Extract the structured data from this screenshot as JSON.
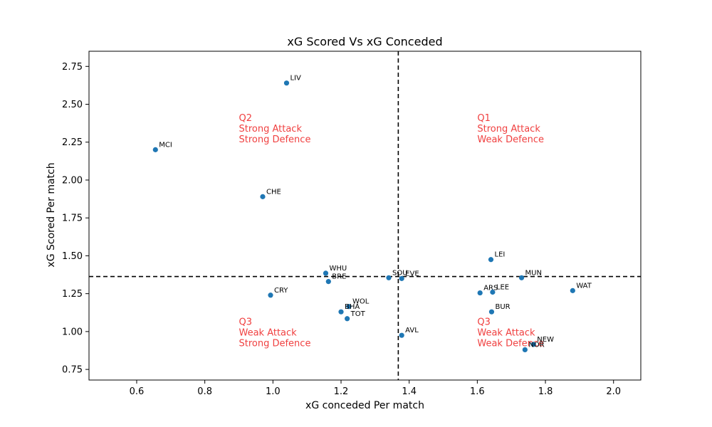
{
  "chart_data": {
    "type": "scatter",
    "title": "xG Scored Vs xG Conceded",
    "xlabel": "xG conceded Per match",
    "ylabel": "xG Scored Per match",
    "xlim": [
      0.46,
      2.08
    ],
    "ylim": [
      0.68,
      2.85
    ],
    "xticks": [
      0.6,
      0.8,
      1.0,
      1.2,
      1.4,
      1.6,
      1.8,
      2.0
    ],
    "xtick_labels": [
      "0.6",
      "0.8",
      "1.0",
      "1.2",
      "1.4",
      "1.6",
      "1.8",
      "2.0"
    ],
    "yticks": [
      0.75,
      1.0,
      1.25,
      1.5,
      1.75,
      2.0,
      2.25,
      2.5,
      2.75
    ],
    "ytick_labels": [
      "0.75",
      "1.00",
      "1.25",
      "1.50",
      "1.75",
      "2.00",
      "2.25",
      "2.50",
      "2.75"
    ],
    "grid": false,
    "point_color": "#1f77b4",
    "quadrant_label_color": "#f04040",
    "reference_lines": {
      "x": 1.368,
      "y": 1.363,
      "style": "dashed",
      "color": "#000000"
    },
    "points": [
      {
        "label": "LIV",
        "x": 1.04,
        "y": 2.64
      },
      {
        "label": "MCI",
        "x": 0.655,
        "y": 2.2
      },
      {
        "label": "CHE",
        "x": 0.97,
        "y": 1.89
      },
      {
        "label": "LEI",
        "x": 1.64,
        "y": 1.475
      },
      {
        "label": "WHU",
        "x": 1.155,
        "y": 1.385
      },
      {
        "label": "BRE",
        "x": 1.163,
        "y": 1.33
      },
      {
        "label": "SOU",
        "x": 1.34,
        "y": 1.355
      },
      {
        "label": "EVE",
        "x": 1.378,
        "y": 1.35
      },
      {
        "label": "MUN",
        "x": 1.73,
        "y": 1.355
      },
      {
        "label": "WAT",
        "x": 1.88,
        "y": 1.27
      },
      {
        "label": "ARS",
        "x": 1.608,
        "y": 1.255
      },
      {
        "label": "LEE",
        "x": 1.645,
        "y": 1.26
      },
      {
        "label": "CRY",
        "x": 0.993,
        "y": 1.24
      },
      {
        "label": "WOL",
        "x": 1.223,
        "y": 1.165
      },
      {
        "label": "BHA",
        "x": 1.2,
        "y": 1.13
      },
      {
        "label": "BUR",
        "x": 1.642,
        "y": 1.13
      },
      {
        "label": "TOT",
        "x": 1.218,
        "y": 1.085
      },
      {
        "label": "AVL",
        "x": 1.378,
        "y": 0.975
      },
      {
        "label": "NEW",
        "x": 1.765,
        "y": 0.915
      },
      {
        "label": "NOR",
        "x": 1.74,
        "y": 0.88
      }
    ],
    "annotations": [
      {
        "lines": [
          "Q2",
          "Strong Attack",
          "Strong Defence"
        ],
        "x": 0.9,
        "y": 2.39
      },
      {
        "lines": [
          "Q1",
          "Strong Attack",
          "Weak Defence"
        ],
        "x": 1.6,
        "y": 2.39
      },
      {
        "lines": [
          "Q3",
          "Weak Attack",
          "Strong Defence"
        ],
        "x": 0.9,
        "y": 1.045
      },
      {
        "lines": [
          "Q3",
          "Weak Attack",
          "Weak Defence"
        ],
        "x": 1.6,
        "y": 1.045
      }
    ]
  }
}
